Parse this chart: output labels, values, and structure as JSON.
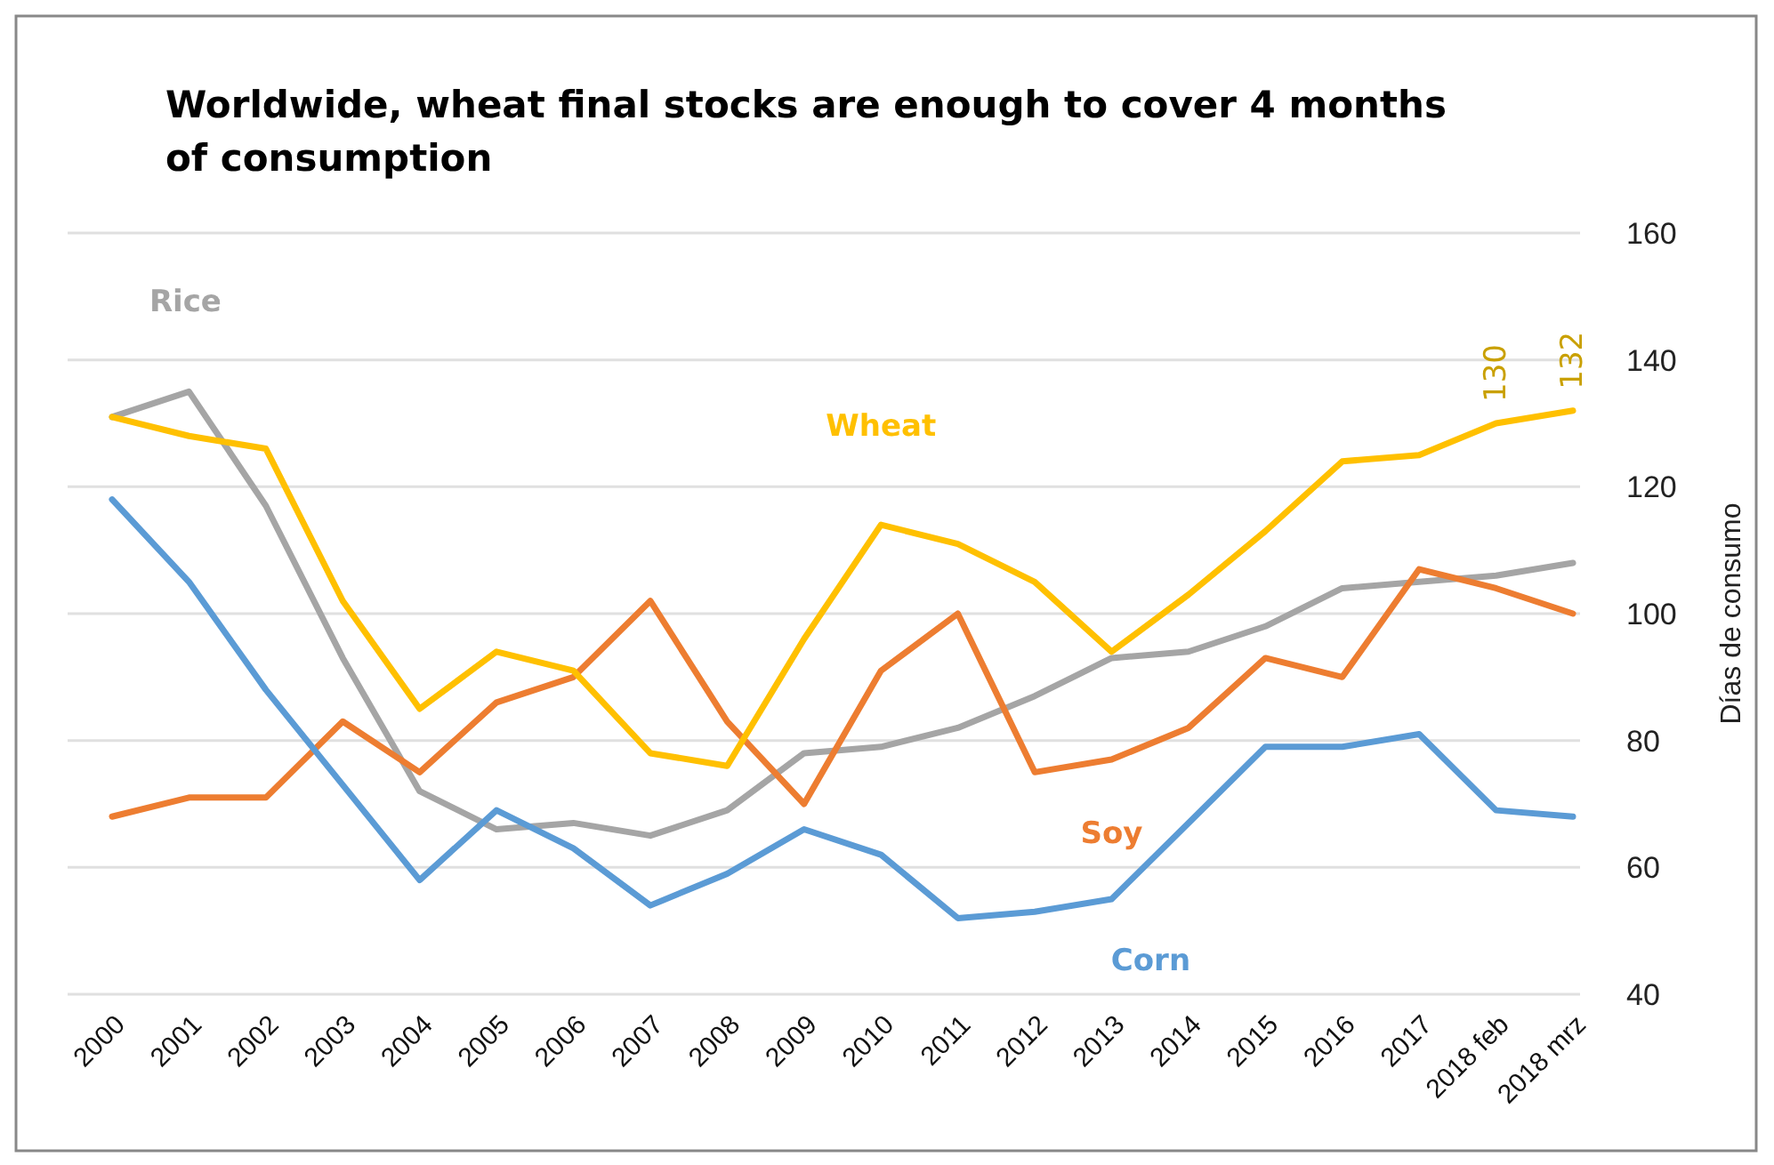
{
  "chart_data": {
    "type": "line",
    "title": "Worldwide, wheat final stocks are enough to cover 4 months of consumption",
    "ylabel": "Días de consumo",
    "categories": [
      "2000",
      "2001",
      "2002",
      "2003",
      "2004",
      "2005",
      "2006",
      "2007",
      "2008",
      "2009",
      "2010",
      "2011",
      "2012",
      "2013",
      "2014",
      "2015",
      "2016",
      "2017",
      "2018 feb",
      "2018 mrz"
    ],
    "series": [
      {
        "name": "Rice",
        "color": "#a5a5a5",
        "values": [
          131,
          135,
          117,
          93,
          72,
          66,
          67,
          65,
          69,
          78,
          79,
          82,
          87,
          93,
          94,
          98,
          104,
          105,
          106,
          108
        ]
      },
      {
        "name": "Soy",
        "color": "#ed7d31",
        "values": [
          68,
          71,
          71,
          83,
          75,
          86,
          90,
          102,
          83,
          70,
          91,
          100,
          75,
          77,
          82,
          93,
          90,
          107,
          104,
          100
        ]
      },
      {
        "name": "Corn",
        "color": "#5b9bd5",
        "values": [
          118,
          105,
          88,
          73,
          58,
          69,
          63,
          54,
          59,
          66,
          62,
          52,
          53,
          55,
          67,
          79,
          79,
          81,
          69,
          68
        ]
      },
      {
        "name": "Wheat",
        "color": "#ffc000",
        "values": [
          131,
          128,
          126,
          102,
          85,
          94,
          91,
          78,
          76,
          96,
          114,
          111,
          105,
          94,
          103,
          113,
          124,
          125,
          130,
          132
        ],
        "value_labels": [
          null,
          null,
          null,
          null,
          null,
          null,
          null,
          null,
          null,
          null,
          null,
          null,
          null,
          null,
          null,
          null,
          null,
          null,
          "130",
          "132"
        ]
      }
    ],
    "ylim": [
      40,
      160
    ],
    "yticks": [
      40,
      60,
      80,
      100,
      120,
      140,
      160
    ],
    "grid": "y",
    "marker": "none",
    "line_style": "solid"
  }
}
